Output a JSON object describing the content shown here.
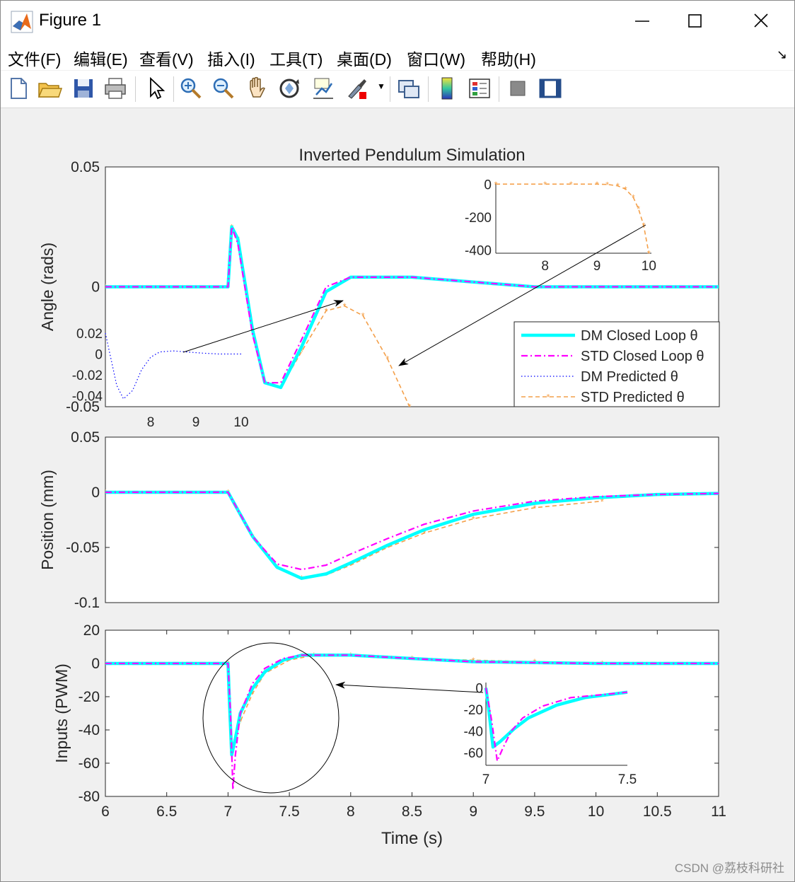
{
  "window": {
    "title": "Figure 1",
    "icon": "matlab-logo-icon"
  },
  "menu": [
    "文件(F)",
    "编辑(E)",
    "查看(V)",
    "插入(I)",
    "工具(T)",
    "桌面(D)",
    "窗口(W)",
    "帮助(H)"
  ],
  "toolbar_icons": [
    "new-figure-icon",
    "open-file-icon",
    "save-icon",
    "print-icon",
    "pointer-icon",
    "zoom-in-icon",
    "zoom-out-icon",
    "pan-hand-icon",
    "rotate-3d-icon",
    "data-cursor-icon",
    "brush-icon",
    "link-plot-icon",
    "colorbar-icon",
    "legend-icon",
    "hide-plot-tools-icon",
    "show-plot-tools-icon"
  ],
  "watermark": "CSDN @荔枝科研社",
  "chart_data": [
    {
      "type": "line",
      "title": "Inverted Pendulum Simulation",
      "ylabel": "Angle (rads)",
      "xlim": [
        6,
        11
      ],
      "ylim": [
        -0.05,
        0.05
      ],
      "yticks": [
        "0.05",
        "0",
        "-0.05"
      ],
      "legend_placement": "right",
      "series": [
        {
          "name": "DM Closed Loop θ",
          "color": "#00ffff",
          "style": "solid",
          "x": [
            6,
            7,
            7.03,
            7.08,
            7.2,
            7.3,
            7.43,
            7.6,
            7.8,
            8,
            8.5,
            9,
            9.5,
            10,
            11
          ],
          "y": [
            0,
            0,
            0.025,
            0.02,
            -0.018,
            -0.04,
            -0.042,
            -0.025,
            -0.002,
            0.004,
            0.004,
            0.002,
            0,
            0,
            0
          ]
        },
        {
          "name": "STD Closed Loop θ",
          "color": "#ff00ff",
          "style": "dashdot",
          "x": [
            6,
            7,
            7.03,
            7.08,
            7.2,
            7.3,
            7.43,
            7.6,
            7.8,
            8,
            8.5,
            9,
            9.5,
            10,
            11
          ],
          "y": [
            0,
            0,
            0.025,
            0.018,
            -0.02,
            -0.04,
            -0.04,
            -0.022,
            0,
            0.004,
            0.004,
            0.002,
            0,
            0,
            0
          ]
        },
        {
          "name": "DM Predicted θ",
          "color": "#0000ff",
          "style": "dotted",
          "x": [],
          "y": []
        },
        {
          "name": "STD Predicted θ",
          "color": "#f4a04a",
          "style": "dashed-star",
          "x": [
            6,
            7,
            7.03,
            7.08,
            7.2,
            7.3,
            7.43,
            7.6,
            7.8,
            7.95,
            8.1,
            8.3,
            8.48
          ],
          "y": [
            0,
            0,
            0.025,
            0.02,
            -0.018,
            -0.04,
            -0.042,
            -0.027,
            -0.01,
            -0.008,
            -0.012,
            -0.03,
            -0.05
          ]
        }
      ],
      "insets": [
        {
          "name": "dm-predicted-inset",
          "xticks": [
            "8",
            "9",
            "10"
          ],
          "yticks": [
            "0.02",
            "0",
            "-0.02",
            "-0.04"
          ],
          "xlim": [
            7,
            10
          ],
          "ylim": [
            -0.045,
            0.02
          ],
          "x": [
            7,
            7.1,
            7.25,
            7.4,
            7.6,
            7.8,
            8,
            8.2,
            8.5,
            8.8,
            9.1,
            9.5,
            10
          ],
          "y": [
            0.02,
            0.0,
            -0.03,
            -0.043,
            -0.035,
            -0.015,
            -0.003,
            0.002,
            0.003,
            0.002,
            0.001,
            0.0,
            0.0
          ]
        },
        {
          "name": "std-predicted-inset",
          "xticks": [
            "8",
            "9",
            "10"
          ],
          "yticks": [
            "0",
            "-200",
            "-400"
          ],
          "xlim": [
            7.05,
            10.05
          ],
          "ylim": [
            -420,
            10
          ],
          "x": [
            7.05,
            8,
            8.5,
            9,
            9.2,
            9.4,
            9.55,
            9.7,
            9.8,
            9.9,
            10
          ],
          "y": [
            0,
            0,
            0,
            0,
            -2,
            -10,
            -30,
            -80,
            -150,
            -250,
            -420
          ]
        }
      ]
    },
    {
      "type": "line",
      "ylabel": "Position (mm)",
      "xlim": [
        6,
        11
      ],
      "ylim": [
        -0.1,
        0.05
      ],
      "yticks": [
        "0.05",
        "0",
        "-0.05",
        "-0.1"
      ],
      "series": [
        {
          "name": "DM Closed Loop θ",
          "color": "#00ffff",
          "x": [
            6,
            7,
            7.2,
            7.4,
            7.6,
            7.8,
            8,
            8.3,
            8.6,
            9,
            9.5,
            10,
            10.5,
            11
          ],
          "y": [
            0,
            0,
            -0.04,
            -0.068,
            -0.078,
            -0.074,
            -0.064,
            -0.048,
            -0.034,
            -0.02,
            -0.01,
            -0.005,
            -0.002,
            -0.001
          ]
        },
        {
          "name": "STD Closed Loop θ",
          "color": "#ff00ff",
          "x": [
            6,
            7,
            7.2,
            7.4,
            7.6,
            7.8,
            8,
            8.3,
            8.6,
            9,
            9.5,
            10,
            10.5,
            11
          ],
          "y": [
            0,
            0,
            -0.04,
            -0.065,
            -0.07,
            -0.066,
            -0.056,
            -0.042,
            -0.029,
            -0.017,
            -0.008,
            -0.004,
            -0.002,
            -0.001
          ]
        },
        {
          "name": "STD Predicted θ",
          "color": "#f4a04a",
          "x": [
            6,
            7,
            7.2,
            7.4,
            7.6,
            7.8,
            8,
            8.3,
            8.6,
            9,
            9.5,
            10.05
          ],
          "y": [
            0,
            0,
            -0.04,
            -0.068,
            -0.078,
            -0.075,
            -0.066,
            -0.05,
            -0.037,
            -0.024,
            -0.014,
            -0.008
          ]
        }
      ]
    },
    {
      "type": "line",
      "ylabel": "Inputs (PWM)",
      "xlabel": "Time (s)",
      "xlim": [
        6,
        11
      ],
      "ylim": [
        -80,
        20
      ],
      "xticks": [
        "6",
        "6.5",
        "7",
        "7.5",
        "8",
        "8.5",
        "9",
        "9.5",
        "10",
        "10.5",
        "11"
      ],
      "yticks": [
        "20",
        "0",
        "-20",
        "-40",
        "-60",
        "-80"
      ],
      "series": [
        {
          "name": "DM Closed Loop θ",
          "color": "#00ffff",
          "x": [
            6,
            7,
            7.01,
            7.03,
            7.06,
            7.1,
            7.2,
            7.3,
            7.45,
            7.6,
            8,
            8.5,
            9,
            10,
            11
          ],
          "y": [
            0,
            0,
            -20,
            -55,
            -45,
            -30,
            -15,
            -5,
            2,
            5,
            5,
            3,
            1,
            0,
            0
          ]
        },
        {
          "name": "STD Closed Loop θ",
          "color": "#ff00ff",
          "x": [
            6,
            7,
            7.02,
            7.04,
            7.06,
            7.1,
            7.2,
            7.3,
            7.45,
            7.6,
            8,
            8.5,
            9,
            10,
            11
          ],
          "y": [
            0,
            0,
            -30,
            -76,
            -55,
            -30,
            -12,
            -3,
            3,
            5,
            5,
            3,
            1,
            0,
            0
          ]
        },
        {
          "name": "STD Predicted θ",
          "color": "#f4a04a",
          "x": [
            6,
            7,
            7.03,
            7.1,
            7.2,
            7.3,
            7.5,
            7.7,
            8,
            8.5,
            9,
            9.5,
            10.05
          ],
          "y": [
            0,
            0,
            -50,
            -35,
            -18,
            -6,
            2,
            5,
            5,
            3,
            2,
            1,
            0
          ]
        }
      ],
      "inset": {
        "xticks": [
          "7",
          "7.5"
        ],
        "yticks": [
          "0",
          "-20",
          "-40",
          "-60"
        ],
        "xlim": [
          7,
          7.5
        ],
        "ylim": [
          -72,
          5
        ],
        "dm": {
          "x": [
            7,
            7.01,
            7.025,
            7.05,
            7.1,
            7.15,
            7.25,
            7.35,
            7.5
          ],
          "y": [
            0,
            -20,
            -55,
            -50,
            -38,
            -28,
            -16,
            -9,
            -4
          ]
        },
        "std": {
          "x": [
            7,
            7.02,
            7.04,
            7.06,
            7.09,
            7.13,
            7.2,
            7.3,
            7.5
          ],
          "y": [
            0,
            -30,
            -68,
            -56,
            -40,
            -28,
            -17,
            -9,
            -4
          ]
        }
      }
    }
  ]
}
